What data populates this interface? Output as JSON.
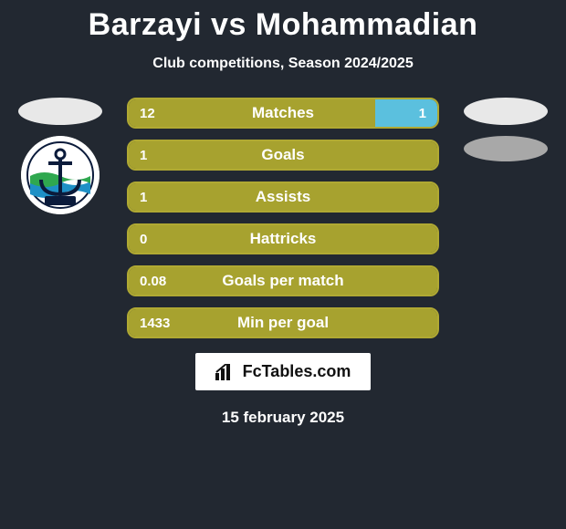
{
  "title": "Barzayi vs Mohammadian",
  "subtitle": "Club competitions, Season 2024/2025",
  "colors": {
    "background": "#222831",
    "bar_fill": "#a7a22f",
    "bar_border": "#b0a933",
    "bar_highlight": "#5bc0de",
    "text": "#ffffff",
    "badge_bg": "#ffffff",
    "badge_text": "#111111"
  },
  "left_player": {
    "oval_color": "#e8e8e8",
    "club_badge": {
      "circle": "#ffffff",
      "anchor": "#0b1b3b",
      "wave_green": "#2fa84f",
      "wave_blue": "#1e90c6"
    }
  },
  "right_player": {
    "oval1_color": "#e8e8e8",
    "oval2_color": "#a8a8a8"
  },
  "bars": [
    {
      "label": "Matches",
      "left": "12",
      "right": "1",
      "left_pct": 80,
      "right_pct": 20,
      "show_right_highlight": true
    },
    {
      "label": "Goals",
      "left": "1",
      "right": "",
      "left_pct": 100,
      "right_pct": 0,
      "show_right_highlight": false
    },
    {
      "label": "Assists",
      "left": "1",
      "right": "",
      "left_pct": 100,
      "right_pct": 0,
      "show_right_highlight": false
    },
    {
      "label": "Hattricks",
      "left": "0",
      "right": "",
      "left_pct": 100,
      "right_pct": 0,
      "show_right_highlight": false
    },
    {
      "label": "Goals per match",
      "left": "0.08",
      "right": "",
      "left_pct": 100,
      "right_pct": 0,
      "show_right_highlight": false
    },
    {
      "label": "Min per goal",
      "left": "1433",
      "right": "",
      "left_pct": 100,
      "right_pct": 0,
      "show_right_highlight": false
    }
  ],
  "footer_brand": "FcTables.com",
  "date": "15 february 2025"
}
